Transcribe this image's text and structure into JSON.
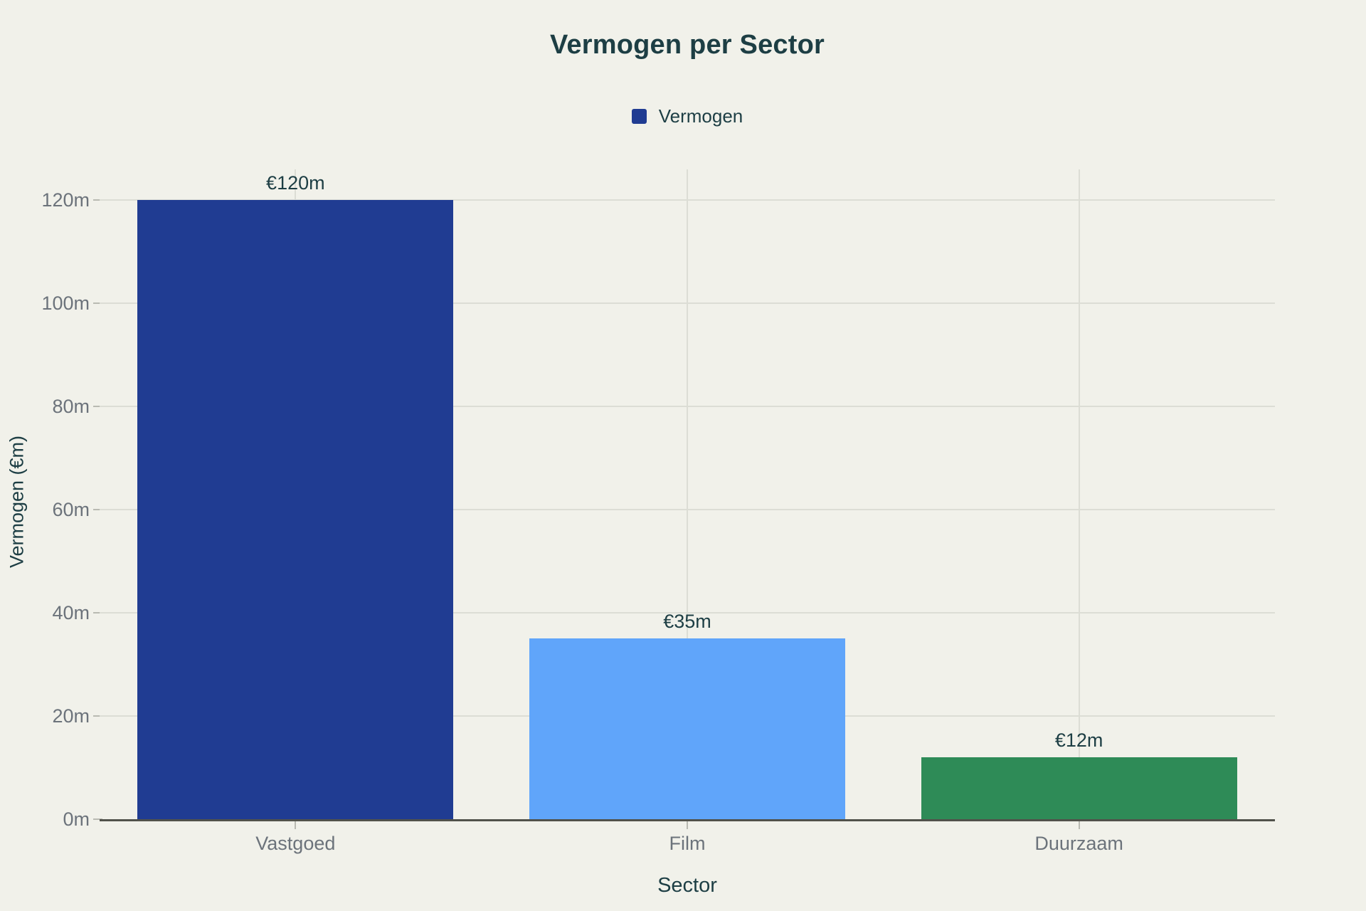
{
  "chart_data": {
    "type": "bar",
    "title": "Vermogen per Sector",
    "xlabel": "Sector",
    "ylabel": "Vermogen (€m)",
    "categories": [
      "Vastgoed",
      "Film",
      "Duurzaam"
    ],
    "series": [
      {
        "name": "Vermogen",
        "values": [
          120,
          35,
          12
        ],
        "colors": [
          "#203C92",
          "#60A5FA",
          "#2E8B57"
        ],
        "value_labels": [
          "€120m",
          "€35m",
          "€12m"
        ]
      }
    ],
    "legend": {
      "position": "top",
      "items": [
        {
          "label": "Vermogen",
          "color": "#203C92"
        }
      ]
    },
    "y_axis": {
      "range": [
        0,
        126
      ],
      "ticks": [
        {
          "value": 0,
          "label": "0m"
        },
        {
          "value": 20,
          "label": "20m"
        },
        {
          "value": 40,
          "label": "40m"
        },
        {
          "value": 60,
          "label": "60m"
        },
        {
          "value": 80,
          "label": "80m"
        },
        {
          "value": 100,
          "label": "100m"
        },
        {
          "value": 120,
          "label": "120m"
        }
      ]
    },
    "grid": true,
    "colors": {
      "background": "#F1F1EA",
      "title_text": "#1D3E44",
      "tick_text": "#6C737B",
      "grid_line": "#DCDDD5",
      "axis_line": "#51524B",
      "tick_mark": "#B9BAB2"
    }
  }
}
